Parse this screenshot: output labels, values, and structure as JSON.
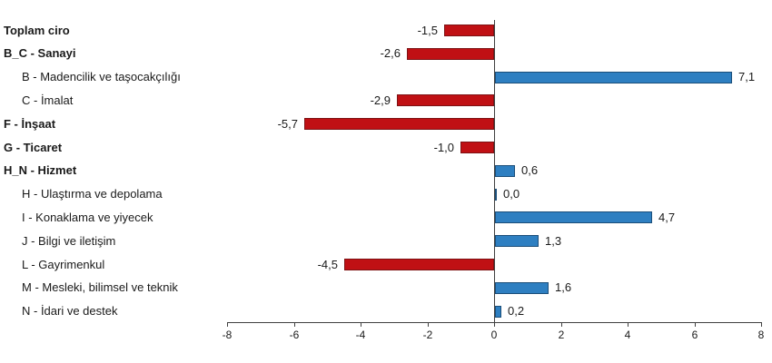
{
  "chart_data": {
    "type": "bar",
    "orientation": "horizontal",
    "title": "",
    "xlabel": "",
    "ylabel": "",
    "xlim": [
      -8,
      8
    ],
    "x_ticks": [
      "-8",
      "-6",
      "-4",
      "-2",
      "0",
      "2",
      "4",
      "6",
      "8"
    ],
    "x_tick_values": [
      -8,
      -6,
      -4,
      -2,
      0,
      2,
      4,
      6,
      8
    ],
    "grid": false,
    "legend_position": "none",
    "value_format": "turkish-decimal-comma",
    "colors": {
      "negative_fill": "#c01014",
      "negative_border": "#7d1214",
      "positive_fill": "#2e7fc1",
      "positive_border": "#1b4e79",
      "axis": "#404040",
      "text": "#1a1a1a",
      "background": "#ffffff"
    },
    "rows": [
      {
        "label": "Toplam ciro",
        "value": -1.5,
        "display": "-1,5",
        "bold": true,
        "indent": false
      },
      {
        "label": "B_C - Sanayi",
        "value": -2.6,
        "display": "-2,6",
        "bold": true,
        "indent": false
      },
      {
        "label": "B - Madencilik ve taşocakçılığı",
        "value": 7.1,
        "display": "7,1",
        "bold": false,
        "indent": true
      },
      {
        "label": "C - İmalat",
        "value": -2.9,
        "display": "-2,9",
        "bold": false,
        "indent": true
      },
      {
        "label": "F - İnşaat",
        "value": -5.7,
        "display": "-5,7",
        "bold": true,
        "indent": false
      },
      {
        "label": "G - Ticaret",
        "value": -1.0,
        "display": "-1,0",
        "bold": true,
        "indent": false
      },
      {
        "label": "H_N - Hizmet",
        "value": 0.6,
        "display": "0,6",
        "bold": true,
        "indent": false
      },
      {
        "label": "H - Ulaştırma ve depolama",
        "value": 0.0,
        "display": "0,0",
        "bold": false,
        "indent": true
      },
      {
        "label": "I - Konaklama ve yiyecek",
        "value": 4.7,
        "display": "4,7",
        "bold": false,
        "indent": true
      },
      {
        "label": "J - Bilgi ve iletişim",
        "value": 1.3,
        "display": "1,3",
        "bold": false,
        "indent": true
      },
      {
        "label": "L - Gayrimenkul",
        "value": -4.5,
        "display": "-4,5",
        "bold": false,
        "indent": true
      },
      {
        "label": "M - Mesleki, bilimsel ve teknik",
        "value": 1.6,
        "display": "1,6",
        "bold": false,
        "indent": true
      },
      {
        "label": "N - İdari ve destek",
        "value": 0.2,
        "display": "0,2",
        "bold": false,
        "indent": true
      }
    ]
  }
}
